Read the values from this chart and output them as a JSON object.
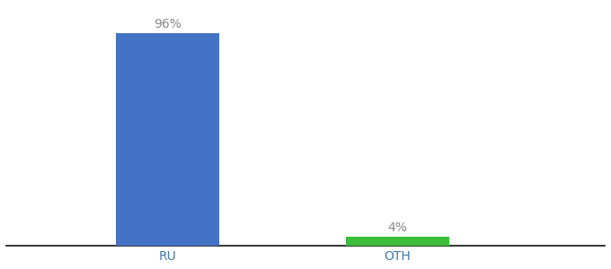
{
  "categories": [
    "RU",
    "OTH"
  ],
  "values": [
    96,
    4
  ],
  "bar_colors": [
    "#4472c4",
    "#3bbf3b"
  ],
  "label_texts": [
    "96%",
    "4%"
  ],
  "background_color": "#ffffff",
  "ylim": [
    0,
    108
  ],
  "bar_width": 0.45,
  "label_fontsize": 10,
  "tick_fontsize": 10,
  "tick_color": "#4477aa",
  "spine_color": "#111111",
  "x_positions": [
    1,
    2
  ],
  "xlim": [
    0.3,
    2.9
  ]
}
